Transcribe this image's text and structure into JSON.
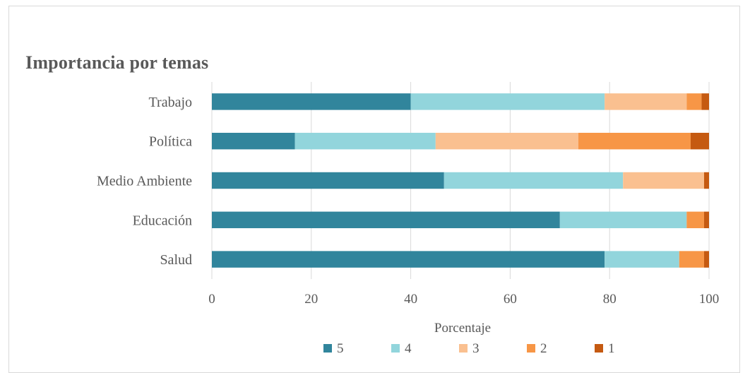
{
  "chart_data": {
    "type": "bar",
    "orientation": "horizontal",
    "stacked": true,
    "title": "Importancia por temas",
    "xlabel": "Porcentaje",
    "ylabel": "",
    "xlim": [
      0,
      100
    ],
    "x_ticks": [
      "0",
      "20",
      "40",
      "60",
      "80",
      "100"
    ],
    "grid": true,
    "legend_position": "bottom",
    "categories": [
      "Trabajo",
      "Política",
      "Medio Ambiente",
      "Educación",
      "Salud"
    ],
    "series": [
      {
        "name": "5",
        "color": "#31859C",
        "values": [
          40,
          16.7,
          46.7,
          70,
          79
        ]
      },
      {
        "name": "4",
        "color": "#92D5DC",
        "values": [
          39,
          28.3,
          36,
          25.5,
          15
        ]
      },
      {
        "name": "3",
        "color": "#FAC090",
        "values": [
          16.5,
          28.7,
          16.3,
          0,
          0
        ]
      },
      {
        "name": "2",
        "color": "#F79646",
        "values": [
          3,
          22.6,
          0,
          3.5,
          5
        ]
      },
      {
        "name": "1",
        "color": "#C55A11",
        "values": [
          1.5,
          3.7,
          1,
          1,
          1
        ]
      }
    ]
  }
}
